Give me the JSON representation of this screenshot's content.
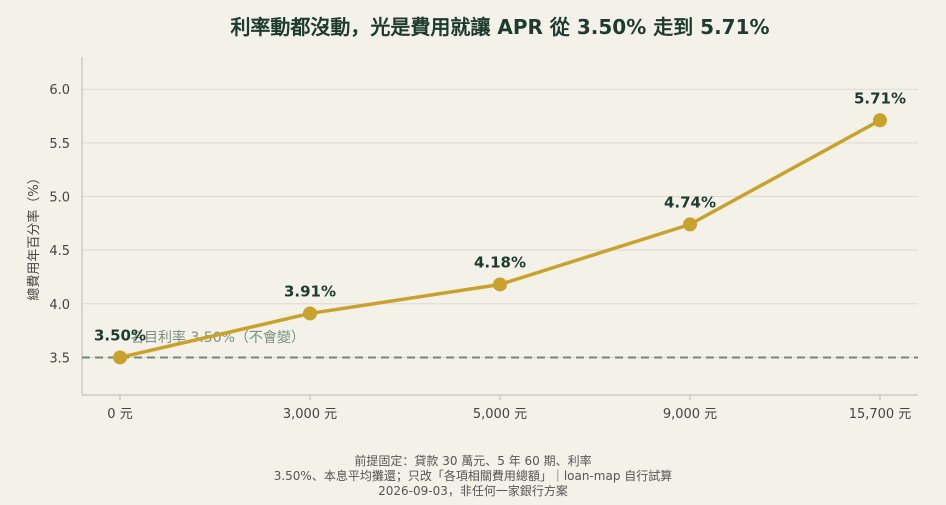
{
  "chart_data": {
    "type": "line",
    "title": "利率動都沒動，光是費用就讓 APR 從 3.50% 走到 5.71%",
    "xlabel": "",
    "ylabel": "總費用年百分率（%）",
    "categories": [
      "0 元",
      "3,000 元",
      "5,000 元",
      "9,000 元",
      "15,700 元"
    ],
    "series": [
      {
        "values": [
          3.5,
          3.91,
          4.18,
          4.74,
          5.71
        ],
        "data_labels": [
          "3.50%",
          "3.91%",
          "4.18%",
          "4.74%",
          "5.71%"
        ]
      }
    ],
    "ylim": [
      3.15,
      6.3
    ],
    "yticks": [
      3.5,
      4.0,
      4.5,
      5.0,
      5.5,
      6.0
    ],
    "ytick_labels": [
      "3.5",
      "4.0",
      "4.5",
      "5.0",
      "5.5",
      "6.0"
    ],
    "grid": "horizontal",
    "reference_line": {
      "value": 3.5,
      "label": "名目利率 3.50%（不會變）",
      "style": "dashed"
    },
    "footnote": [
      "前提固定：貸款 30 萬元、5 年 60 期、利率",
      "3.50%、本息平均攤還；只改「各項相關費用總額」｜loan-map 自行試算",
      "2026-09-03，非任何一家銀行方案"
    ],
    "colors": {
      "line": "#c9a22d",
      "marker": "#c9a22d",
      "reference": "#6f8a74",
      "grid": "#dcdad2",
      "background": "#f4f1e8",
      "title": "#1e3b2f"
    }
  }
}
